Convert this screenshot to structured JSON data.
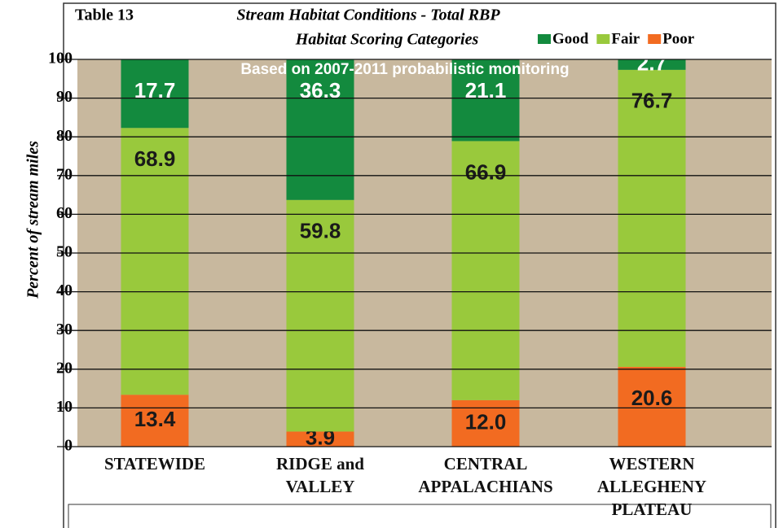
{
  "chart_data": {
    "type": "stacked_bar",
    "table_label": "Table 13",
    "title": "Stream Habitat Conditions - Total RBP",
    "title_line2": "Habitat Scoring Categories",
    "subtitle": "Based on 2007-2011 probabilistic monitoring",
    "y_axis_label": "Percent of stream miles",
    "categories": [
      "STATEWIDE",
      "RIDGE and\nVALLEY",
      "CENTRAL\nAPPALACHIANS",
      "WESTERN\nALLEGHENY\nPLATEAU"
    ],
    "series": [
      {
        "name": "Good",
        "color": "#138a3e",
        "values": [
          17.7,
          36.3,
          21.1,
          2.7
        ]
      },
      {
        "name": "Fair",
        "color": "#99c93c",
        "values": [
          68.9,
          59.8,
          66.9,
          76.7
        ]
      },
      {
        "name": "Poor",
        "color": "#f26b21",
        "values": [
          13.4,
          3.9,
          12.0,
          20.6
        ],
        "value_labels": [
          "13.4",
          "3.9",
          "12.0",
          "20.6"
        ]
      }
    ],
    "ylim": [
      0,
      100
    ],
    "yticks": [
      0,
      10,
      20,
      30,
      40,
      50,
      60,
      70,
      80,
      90,
      100
    ],
    "grid": true,
    "legend": "top-right",
    "background": "#c8b89e"
  }
}
